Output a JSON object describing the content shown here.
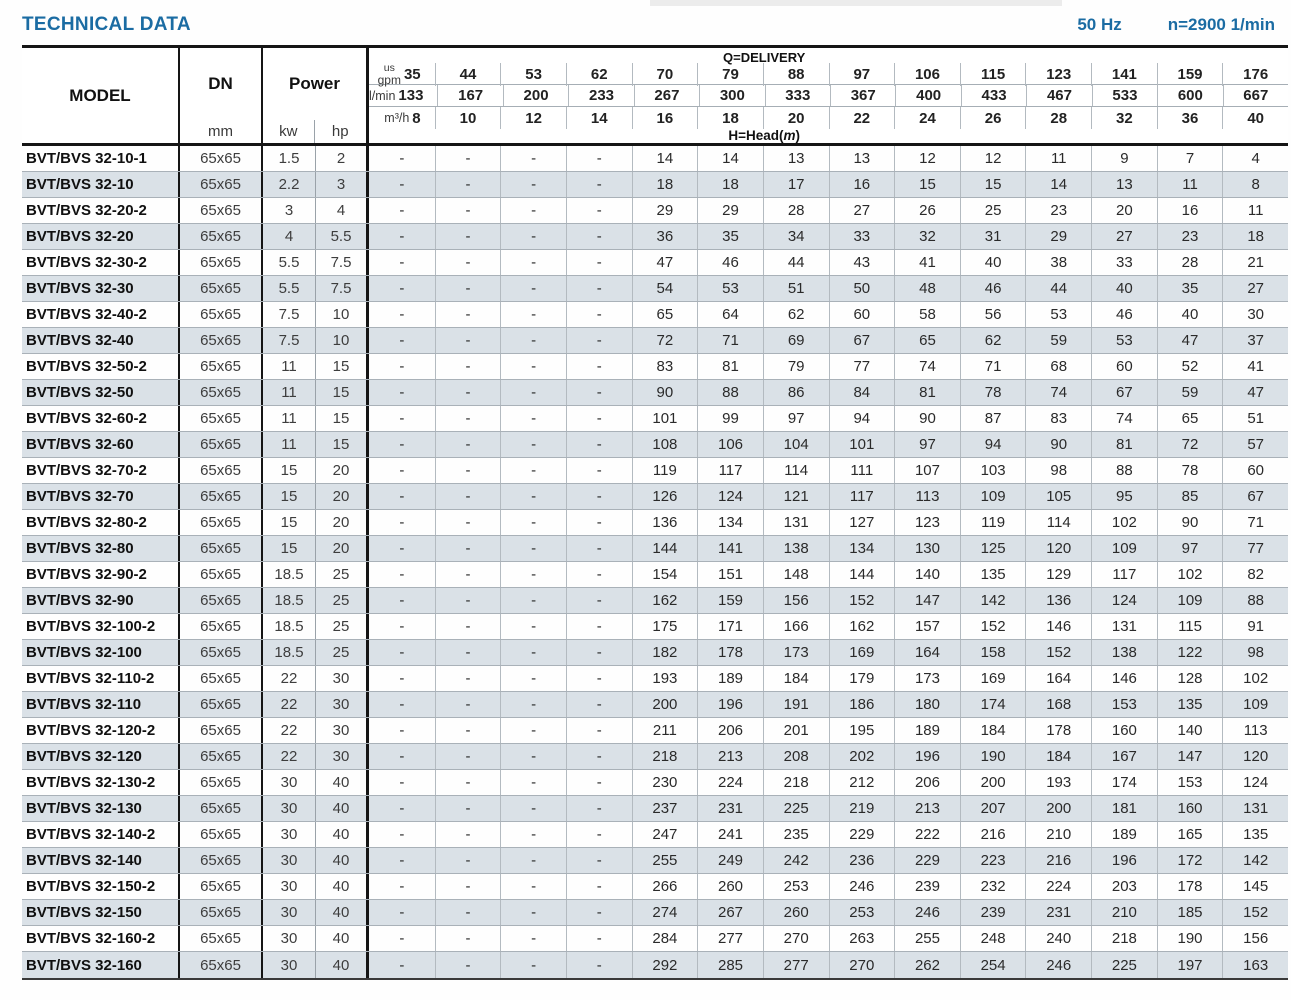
{
  "page": {
    "title": "TECHNICAL DATA",
    "frequency": "50 Hz",
    "speed": "n=2900 1/min",
    "accent_color": "#1b6ca3",
    "stripe_color": "#dae1e7"
  },
  "header": {
    "model_label": "MODEL",
    "dn_label": "DN",
    "dn_unit": "mm",
    "power_label": "Power",
    "power_unit_kw": "kw",
    "power_unit_hp": "hp",
    "delivery_label": "Q=DELIVERY",
    "head_label_prefix": "H=Head(",
    "head_label_m": "m",
    "head_label_suffix": ")",
    "unit_rows": [
      {
        "label_line1": "us",
        "label_line2": "gpm",
        "values": [
          "35",
          "44",
          "53",
          "62",
          "70",
          "79",
          "88",
          "97",
          "106",
          "115",
          "123",
          "141",
          "159",
          "176"
        ]
      },
      {
        "label": "l/min",
        "values": [
          "133",
          "167",
          "200",
          "233",
          "267",
          "300",
          "333",
          "367",
          "400",
          "433",
          "467",
          "533",
          "600",
          "667"
        ]
      },
      {
        "label": "m³/h",
        "values": [
          "8",
          "10",
          "12",
          "14",
          "16",
          "18",
          "20",
          "22",
          "24",
          "26",
          "28",
          "32",
          "36",
          "40"
        ]
      }
    ]
  },
  "table": {
    "rows": [
      {
        "model": "BVT/BVS 32-10-1",
        "dn": "65x65",
        "kw": "1.5",
        "hp": "2",
        "head": [
          "-",
          "-",
          "-",
          "-",
          "14",
          "14",
          "13",
          "13",
          "12",
          "12",
          "11",
          "9",
          "7",
          "4"
        ]
      },
      {
        "model": "BVT/BVS 32-10",
        "dn": "65x65",
        "kw": "2.2",
        "hp": "3",
        "head": [
          "-",
          "-",
          "-",
          "-",
          "18",
          "18",
          "17",
          "16",
          "15",
          "15",
          "14",
          "13",
          "11",
          "8"
        ]
      },
      {
        "model": "BVT/BVS 32-20-2",
        "dn": "65x65",
        "kw": "3",
        "hp": "4",
        "head": [
          "-",
          "-",
          "-",
          "-",
          "29",
          "29",
          "28",
          "27",
          "26",
          "25",
          "23",
          "20",
          "16",
          "11"
        ]
      },
      {
        "model": "BVT/BVS 32-20",
        "dn": "65x65",
        "kw": "4",
        "hp": "5.5",
        "head": [
          "-",
          "-",
          "-",
          "-",
          "36",
          "35",
          "34",
          "33",
          "32",
          "31",
          "29",
          "27",
          "23",
          "18"
        ]
      },
      {
        "model": "BVT/BVS 32-30-2",
        "dn": "65x65",
        "kw": "5.5",
        "hp": "7.5",
        "head": [
          "-",
          "-",
          "-",
          "-",
          "47",
          "46",
          "44",
          "43",
          "41",
          "40",
          "38",
          "33",
          "28",
          "21"
        ]
      },
      {
        "model": "BVT/BVS 32-30",
        "dn": "65x65",
        "kw": "5.5",
        "hp": "7.5",
        "head": [
          "-",
          "-",
          "-",
          "-",
          "54",
          "53",
          "51",
          "50",
          "48",
          "46",
          "44",
          "40",
          "35",
          "27"
        ]
      },
      {
        "model": "BVT/BVS 32-40-2",
        "dn": "65x65",
        "kw": "7.5",
        "hp": "10",
        "head": [
          "-",
          "-",
          "-",
          "-",
          "65",
          "64",
          "62",
          "60",
          "58",
          "56",
          "53",
          "46",
          "40",
          "30"
        ]
      },
      {
        "model": "BVT/BVS 32-40",
        "dn": "65x65",
        "kw": "7.5",
        "hp": "10",
        "head": [
          "-",
          "-",
          "-",
          "-",
          "72",
          "71",
          "69",
          "67",
          "65",
          "62",
          "59",
          "53",
          "47",
          "37"
        ]
      },
      {
        "model": "BVT/BVS 32-50-2",
        "dn": "65x65",
        "kw": "11",
        "hp": "15",
        "head": [
          "-",
          "-",
          "-",
          "-",
          "83",
          "81",
          "79",
          "77",
          "74",
          "71",
          "68",
          "60",
          "52",
          "41"
        ]
      },
      {
        "model": "BVT/BVS 32-50",
        "dn": "65x65",
        "kw": "11",
        "hp": "15",
        "head": [
          "-",
          "-",
          "-",
          "-",
          "90",
          "88",
          "86",
          "84",
          "81",
          "78",
          "74",
          "67",
          "59",
          "47"
        ]
      },
      {
        "model": "BVT/BVS 32-60-2",
        "dn": "65x65",
        "kw": "11",
        "hp": "15",
        "head": [
          "-",
          "-",
          "-",
          "-",
          "101",
          "99",
          "97",
          "94",
          "90",
          "87",
          "83",
          "74",
          "65",
          "51"
        ]
      },
      {
        "model": "BVT/BVS 32-60",
        "dn": "65x65",
        "kw": "11",
        "hp": "15",
        "head": [
          "-",
          "-",
          "-",
          "-",
          "108",
          "106",
          "104",
          "101",
          "97",
          "94",
          "90",
          "81",
          "72",
          "57"
        ]
      },
      {
        "model": "BVT/BVS 32-70-2",
        "dn": "65x65",
        "kw": "15",
        "hp": "20",
        "head": [
          "-",
          "-",
          "-",
          "-",
          "119",
          "117",
          "114",
          "111",
          "107",
          "103",
          "98",
          "88",
          "78",
          "60"
        ]
      },
      {
        "model": "BVT/BVS 32-70",
        "dn": "65x65",
        "kw": "15",
        "hp": "20",
        "head": [
          "-",
          "-",
          "-",
          "-",
          "126",
          "124",
          "121",
          "117",
          "113",
          "109",
          "105",
          "95",
          "85",
          "67"
        ]
      },
      {
        "model": "BVT/BVS 32-80-2",
        "dn": "65x65",
        "kw": "15",
        "hp": "20",
        "head": [
          "-",
          "-",
          "-",
          "-",
          "136",
          "134",
          "131",
          "127",
          "123",
          "119",
          "114",
          "102",
          "90",
          "71"
        ]
      },
      {
        "model": "BVT/BVS 32-80",
        "dn": "65x65",
        "kw": "15",
        "hp": "20",
        "head": [
          "-",
          "-",
          "-",
          "-",
          "144",
          "141",
          "138",
          "134",
          "130",
          "125",
          "120",
          "109",
          "97",
          "77"
        ]
      },
      {
        "model": "BVT/BVS 32-90-2",
        "dn": "65x65",
        "kw": "18.5",
        "hp": "25",
        "head": [
          "-",
          "-",
          "-",
          "-",
          "154",
          "151",
          "148",
          "144",
          "140",
          "135",
          "129",
          "117",
          "102",
          "82"
        ]
      },
      {
        "model": "BVT/BVS 32-90",
        "dn": "65x65",
        "kw": "18.5",
        "hp": "25",
        "head": [
          "-",
          "-",
          "-",
          "-",
          "162",
          "159",
          "156",
          "152",
          "147",
          "142",
          "136",
          "124",
          "109",
          "88"
        ]
      },
      {
        "model": "BVT/BVS 32-100-2",
        "dn": "65x65",
        "kw": "18.5",
        "hp": "25",
        "head": [
          "-",
          "-",
          "-",
          "-",
          "175",
          "171",
          "166",
          "162",
          "157",
          "152",
          "146",
          "131",
          "115",
          "91"
        ]
      },
      {
        "model": "BVT/BVS 32-100",
        "dn": "65x65",
        "kw": "18.5",
        "hp": "25",
        "head": [
          "-",
          "-",
          "-",
          "-",
          "182",
          "178",
          "173",
          "169",
          "164",
          "158",
          "152",
          "138",
          "122",
          "98"
        ]
      },
      {
        "model": "BVT/BVS 32-110-2",
        "dn": "65x65",
        "kw": "22",
        "hp": "30",
        "head": [
          "-",
          "-",
          "-",
          "-",
          "193",
          "189",
          "184",
          "179",
          "173",
          "169",
          "164",
          "146",
          "128",
          "102"
        ]
      },
      {
        "model": "BVT/BVS 32-110",
        "dn": "65x65",
        "kw": "22",
        "hp": "30",
        "head": [
          "-",
          "-",
          "-",
          "-",
          "200",
          "196",
          "191",
          "186",
          "180",
          "174",
          "168",
          "153",
          "135",
          "109"
        ]
      },
      {
        "model": "BVT/BVS 32-120-2",
        "dn": "65x65",
        "kw": "22",
        "hp": "30",
        "head": [
          "-",
          "-",
          "-",
          "-",
          "211",
          "206",
          "201",
          "195",
          "189",
          "184",
          "178",
          "160",
          "140",
          "113"
        ]
      },
      {
        "model": "BVT/BVS 32-120",
        "dn": "65x65",
        "kw": "22",
        "hp": "30",
        "head": [
          "-",
          "-",
          "-",
          "-",
          "218",
          "213",
          "208",
          "202",
          "196",
          "190",
          "184",
          "167",
          "147",
          "120"
        ]
      },
      {
        "model": "BVT/BVS 32-130-2",
        "dn": "65x65",
        "kw": "30",
        "hp": "40",
        "head": [
          "-",
          "-",
          "-",
          "-",
          "230",
          "224",
          "218",
          "212",
          "206",
          "200",
          "193",
          "174",
          "153",
          "124"
        ]
      },
      {
        "model": "BVT/BVS 32-130",
        "dn": "65x65",
        "kw": "30",
        "hp": "40",
        "head": [
          "-",
          "-",
          "-",
          "-",
          "237",
          "231",
          "225",
          "219",
          "213",
          "207",
          "200",
          "181",
          "160",
          "131"
        ]
      },
      {
        "model": "BVT/BVS 32-140-2",
        "dn": "65x65",
        "kw": "30",
        "hp": "40",
        "head": [
          "-",
          "-",
          "-",
          "-",
          "247",
          "241",
          "235",
          "229",
          "222",
          "216",
          "210",
          "189",
          "165",
          "135"
        ]
      },
      {
        "model": "BVT/BVS 32-140",
        "dn": "65x65",
        "kw": "30",
        "hp": "40",
        "head": [
          "-",
          "-",
          "-",
          "-",
          "255",
          "249",
          "242",
          "236",
          "229",
          "223",
          "216",
          "196",
          "172",
          "142"
        ]
      },
      {
        "model": "BVT/BVS 32-150-2",
        "dn": "65x65",
        "kw": "30",
        "hp": "40",
        "head": [
          "-",
          "-",
          "-",
          "-",
          "266",
          "260",
          "253",
          "246",
          "239",
          "232",
          "224",
          "203",
          "178",
          "145"
        ]
      },
      {
        "model": "BVT/BVS 32-150",
        "dn": "65x65",
        "kw": "30",
        "hp": "40",
        "head": [
          "-",
          "-",
          "-",
          "-",
          "274",
          "267",
          "260",
          "253",
          "246",
          "239",
          "231",
          "210",
          "185",
          "152"
        ]
      },
      {
        "model": "BVT/BVS 32-160-2",
        "dn": "65x65",
        "kw": "30",
        "hp": "40",
        "head": [
          "-",
          "-",
          "-",
          "-",
          "284",
          "277",
          "270",
          "263",
          "255",
          "248",
          "240",
          "218",
          "190",
          "156"
        ]
      },
      {
        "model": "BVT/BVS 32-160",
        "dn": "65x65",
        "kw": "30",
        "hp": "40",
        "head": [
          "-",
          "-",
          "-",
          "-",
          "292",
          "285",
          "277",
          "270",
          "262",
          "254",
          "246",
          "225",
          "197",
          "163"
        ]
      }
    ]
  }
}
